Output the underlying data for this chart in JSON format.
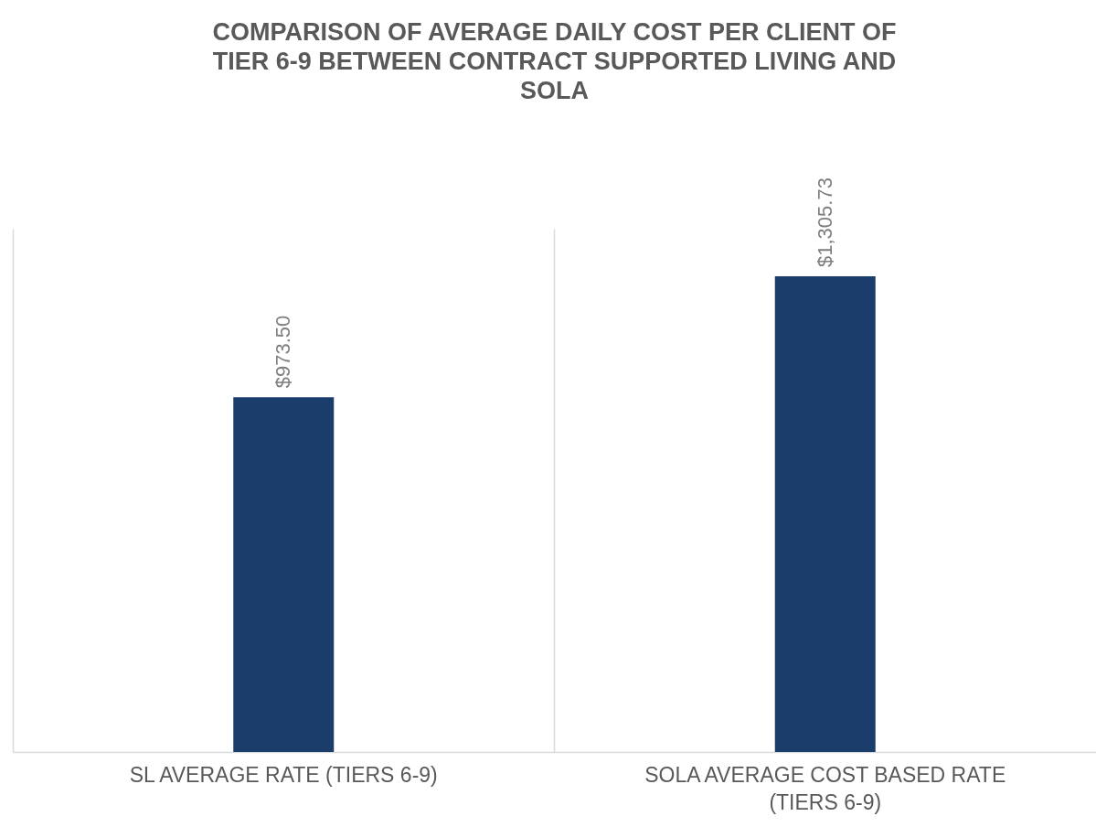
{
  "chart_data": {
    "type": "bar",
    "title": "COMPARISON OF AVERAGE DAILY COST PER CLIENT  OF TIER 6-9 BETWEEN CONTRACT SUPPORTED LIVING AND SOLA",
    "categories": [
      "SL AVERAGE RATE (TIERS 6-9)",
      "SOLA AVERAGE COST BASED RATE (TIERS 6-9)"
    ],
    "values": [
      973.5,
      1305.73
    ],
    "value_labels": [
      "$973.50",
      "$1,305.73"
    ],
    "color": "#1b3d6b",
    "grid": "x"
  }
}
